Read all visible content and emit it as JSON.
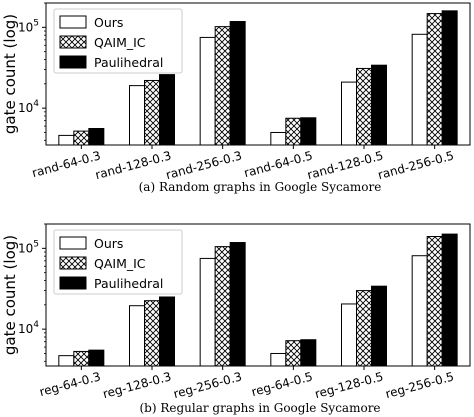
{
  "chart_data": [
    {
      "type": "bar",
      "ylabel": "gate count (log)",
      "yscale": "log",
      "ylim": [
        3500,
        200000
      ],
      "yticks": [
        {
          "value": 10000,
          "base": "10",
          "exp": "4"
        },
        {
          "value": 100000,
          "base": "10",
          "exp": "5"
        }
      ],
      "categories": [
        "rand-64-0.3",
        "rand-128-0.3",
        "rand-256-0.3",
        "rand-64-0.5",
        "rand-128-0.5",
        "rand-256-0.5"
      ],
      "series": [
        {
          "name": "Ours",
          "pattern": "white",
          "values": [
            4600,
            19000,
            75000,
            5000,
            21000,
            82000
          ]
        },
        {
          "name": "QAIM_IC",
          "pattern": "crosshatch",
          "values": [
            5200,
            22000,
            102000,
            7500,
            31000,
            148000
          ]
        },
        {
          "name": "Paulihedral",
          "pattern": "black",
          "values": [
            5600,
            26000,
            118000,
            7600,
            34000,
            160000
          ]
        }
      ],
      "legend_position": "top-left",
      "grid": false,
      "caption": "(a) Random graphs in Google Sycamore"
    },
    {
      "type": "bar",
      "ylabel": "gate count (log)",
      "yscale": "log",
      "ylim": [
        3500,
        200000
      ],
      "yticks": [
        {
          "value": 10000,
          "base": "10",
          "exp": "4"
        },
        {
          "value": 100000,
          "base": "10",
          "exp": "5"
        }
      ],
      "categories": [
        "reg-64-0.3",
        "reg-128-0.3",
        "reg-256-0.3",
        "reg-64-0.5",
        "reg-128-0.5",
        "reg-256-0.5"
      ],
      "series": [
        {
          "name": "Ours",
          "pattern": "white",
          "values": [
            4700,
            19500,
            75000,
            5000,
            20500,
            81000
          ]
        },
        {
          "name": "QAIM_IC",
          "pattern": "crosshatch",
          "values": [
            5300,
            22500,
            105000,
            7200,
            30000,
            140000
          ]
        },
        {
          "name": "Paulihedral",
          "pattern": "black",
          "values": [
            5500,
            25000,
            118000,
            7400,
            34000,
            150000
          ]
        }
      ],
      "legend_position": "top-left",
      "grid": false,
      "caption": "(b) Regular graphs in Google Sycamore"
    }
  ]
}
